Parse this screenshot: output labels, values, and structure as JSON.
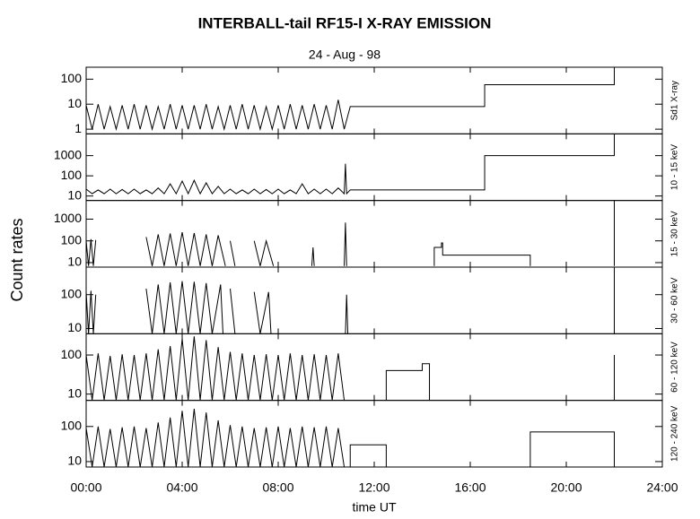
{
  "title": "INTERBALL-tail  RF15-I   X-RAY  EMISSION",
  "subtitle": "24 - Aug - 98",
  "ylabel": "Count  rates",
  "chart_data": [
    {
      "type": "line",
      "label": "Sd1 X-ray",
      "log": true,
      "xlim": [
        0,
        24
      ],
      "ylim": [
        0.65,
        300
      ],
      "yticks": [
        1,
        10,
        100
      ],
      "series": [
        {
          "color": "#000000",
          "x": [
            0,
            0.25,
            0.5,
            0.75,
            1,
            1.25,
            1.5,
            1.75,
            2,
            2.25,
            2.5,
            2.75,
            3,
            3.25,
            3.5,
            3.75,
            4,
            4.25,
            4.5,
            4.75,
            5,
            5.25,
            5.5,
            5.75,
            6,
            6.25,
            6.5,
            6.75,
            7,
            7.25,
            7.5,
            7.75,
            8,
            8.25,
            8.5,
            8.75,
            9,
            9.25,
            9.5,
            9.75,
            10,
            10.25,
            10.5,
            10.75,
            11,
            16.6,
            16.6,
            22,
            22
          ],
          "values": [
            9,
            1,
            10,
            1,
            8,
            1,
            9,
            1,
            10,
            1,
            9,
            1,
            8,
            1,
            10,
            1,
            9,
            1,
            9,
            1,
            10,
            1,
            8,
            1,
            9,
            1,
            10,
            1,
            9,
            1,
            8,
            1,
            9,
            1,
            10,
            1,
            9,
            1,
            10,
            1,
            9,
            1,
            15,
            1,
            8,
            8,
            60,
            60,
            300
          ]
        }
      ]
    },
    {
      "type": "line",
      "label": "10 - 15 keV",
      "log": true,
      "xlim": [
        0,
        24
      ],
      "ylim": [
        6,
        12000
      ],
      "yticks": [
        10,
        100,
        1000
      ],
      "series": [
        {
          "color": "#000000",
          "x": [
            0,
            0.25,
            0.5,
            0.75,
            1,
            1.25,
            1.5,
            1.75,
            2,
            2.25,
            2.5,
            2.75,
            3,
            3.25,
            3.5,
            3.75,
            4,
            4.25,
            4.5,
            4.75,
            5,
            5.25,
            5.5,
            5.75,
            6,
            6.25,
            6.5,
            6.75,
            7,
            7.25,
            7.5,
            7.75,
            8,
            8.25,
            8.5,
            8.75,
            9,
            9.25,
            9.5,
            9.75,
            10,
            10.25,
            10.5,
            10.75,
            10.8,
            10.85,
            11,
            16.6,
            16.6,
            22,
            22
          ],
          "values": [
            22,
            13,
            20,
            13,
            22,
            13,
            21,
            13,
            22,
            13,
            20,
            13,
            25,
            13,
            40,
            13,
            55,
            13,
            60,
            13,
            45,
            13,
            30,
            13,
            22,
            13,
            20,
            13,
            22,
            13,
            21,
            13,
            22,
            13,
            20,
            13,
            40,
            13,
            22,
            13,
            22,
            13,
            25,
            13,
            400,
            13,
            20,
            20,
            1000,
            1000,
            12000
          ]
        }
      ]
    },
    {
      "type": "line",
      "label": "15 - 30 keV",
      "log": true,
      "xlim": [
        0,
        24
      ],
      "ylim": [
        6.2,
        7200
      ],
      "yticks": [
        10,
        100,
        1000
      ],
      "series": [
        {
          "color": "#000000",
          "x": [
            0,
            0.1,
            0.2,
            0.3,
            0.4,
            0.5,
            2.5,
            2.75,
            3,
            3.25,
            3.5,
            3.75,
            4,
            4.25,
            4.5,
            4.75,
            5,
            5.25,
            5.5,
            5.8,
            5.9,
            6,
            6.2,
            6.3,
            7,
            7.25,
            7.5,
            7.8,
            7.9,
            9.4,
            9.45,
            9.5,
            9.6,
            10.75,
            10.8,
            10.85,
            10.9,
            14.5,
            14.5,
            14.8,
            14.8,
            14.85,
            14.85,
            18.5,
            18.5,
            18.6,
            22,
            22
          ],
          "values": [
            100,
            7,
            120,
            7,
            110,
            null,
            150,
            7,
            200,
            7,
            220,
            7,
            250,
            7,
            230,
            7,
            200,
            7,
            180,
            7,
            null,
            100,
            7,
            null,
            100,
            7,
            100,
            7,
            null,
            7,
            50,
            7,
            null,
            7,
            700,
            7,
            null,
            7,
            50,
            50,
            80,
            80,
            22,
            22,
            7,
            null,
            7,
            7200
          ]
        }
      ]
    },
    {
      "type": "line",
      "label": "30 - 60 keV",
      "log": true,
      "xlim": [
        0,
        24
      ],
      "ylim": [
        7,
        650
      ],
      "yticks": [
        10,
        100
      ],
      "series": [
        {
          "color": "#000000",
          "x": [
            0,
            0.1,
            0.2,
            0.3,
            0.4,
            0.5,
            2.5,
            2.75,
            3,
            3.25,
            3.5,
            3.75,
            4,
            4.25,
            4.5,
            4.75,
            5,
            5.25,
            5.6,
            5.7,
            5.8,
            6,
            6.2,
            6.3,
            7,
            7.25,
            7.6,
            7.7,
            7.8,
            10.8,
            10.85,
            10.9,
            11,
            22,
            22
          ],
          "values": [
            120,
            7,
            130,
            7,
            100,
            null,
            150,
            7,
            200,
            7,
            230,
            7,
            250,
            7,
            240,
            7,
            220,
            7,
            200,
            7,
            null,
            150,
            7,
            null,
            120,
            7,
            120,
            7,
            null,
            7,
            100,
            7,
            null,
            7,
            650
          ]
        }
      ]
    },
    {
      "type": "line",
      "label": "60 - 120 keV",
      "log": true,
      "xlim": [
        0,
        24
      ],
      "ylim": [
        6.9,
        350
      ],
      "yticks": [
        10,
        100
      ],
      "series": [
        {
          "color": "#000000",
          "x": [
            0,
            0.25,
            0.5,
            0.75,
            1,
            1.25,
            1.5,
            1.75,
            2,
            2.25,
            2.5,
            2.75,
            3,
            3.25,
            3.5,
            3.75,
            4,
            4.25,
            4.5,
            4.75,
            5,
            5.25,
            5.5,
            5.75,
            6,
            6.25,
            6.5,
            6.75,
            7,
            7.25,
            7.5,
            7.75,
            8,
            8.25,
            8.5,
            8.75,
            9,
            9.25,
            9.5,
            9.75,
            10,
            10.25,
            10.5,
            10.75,
            11,
            12.5,
            12.5,
            14,
            14,
            14.3,
            14.3,
            14.4,
            22,
            22
          ],
          "values": [
            100,
            7,
            110,
            7,
            95,
            7,
            105,
            7,
            100,
            7,
            110,
            7,
            140,
            7,
            170,
            7,
            260,
            7,
            300,
            7,
            240,
            7,
            160,
            7,
            120,
            7,
            110,
            7,
            100,
            7,
            105,
            7,
            100,
            7,
            110,
            7,
            100,
            7,
            105,
            7,
            100,
            7,
            110,
            7,
            null,
            7,
            40,
            40,
            60,
            60,
            7,
            null,
            7,
            100
          ]
        }
      ]
    },
    {
      "type": "line",
      "label": "120 - 240 keV",
      "log": true,
      "xlim": [
        0,
        24
      ],
      "ylim": [
        7,
        555
      ],
      "yticks": [
        10,
        100
      ],
      "xticks": [
        {
          "value": 0,
          "label": "00:00"
        },
        {
          "value": 4,
          "label": "04:00"
        },
        {
          "value": 8,
          "label": "08:00"
        },
        {
          "value": 12,
          "label": "12:00"
        },
        {
          "value": 16,
          "label": "16:00"
        },
        {
          "value": 20,
          "label": "20:00"
        },
        {
          "value": 24,
          "label": "24:00"
        }
      ],
      "xlabel": "time UT",
      "series": [
        {
          "color": "#000000",
          "x": [
            0,
            0.25,
            0.5,
            0.75,
            1,
            1.25,
            1.5,
            1.75,
            2,
            2.25,
            2.5,
            2.75,
            3,
            3.25,
            3.5,
            3.75,
            4,
            4.25,
            4.5,
            4.75,
            5,
            5.25,
            5.5,
            5.75,
            6,
            6.25,
            6.5,
            6.75,
            7,
            7.25,
            7.5,
            7.75,
            8,
            8.25,
            8.5,
            8.75,
            9,
            9.25,
            9.5,
            9.75,
            10,
            10.25,
            10.5,
            10.75,
            11,
            11,
            12.5,
            12.5,
            12.6,
            18.5,
            18.5,
            22,
            22
          ],
          "values": [
            90,
            7,
            100,
            7,
            85,
            7,
            95,
            7,
            100,
            7,
            90,
            7,
            130,
            7,
            180,
            7,
            280,
            7,
            320,
            7,
            250,
            7,
            150,
            7,
            110,
            7,
            100,
            7,
            90,
            7,
            95,
            7,
            100,
            7,
            90,
            7,
            100,
            7,
            95,
            7,
            100,
            7,
            90,
            7,
            7,
            30,
            30,
            7,
            null,
            7,
            70,
            70,
            7
          ]
        }
      ]
    }
  ]
}
